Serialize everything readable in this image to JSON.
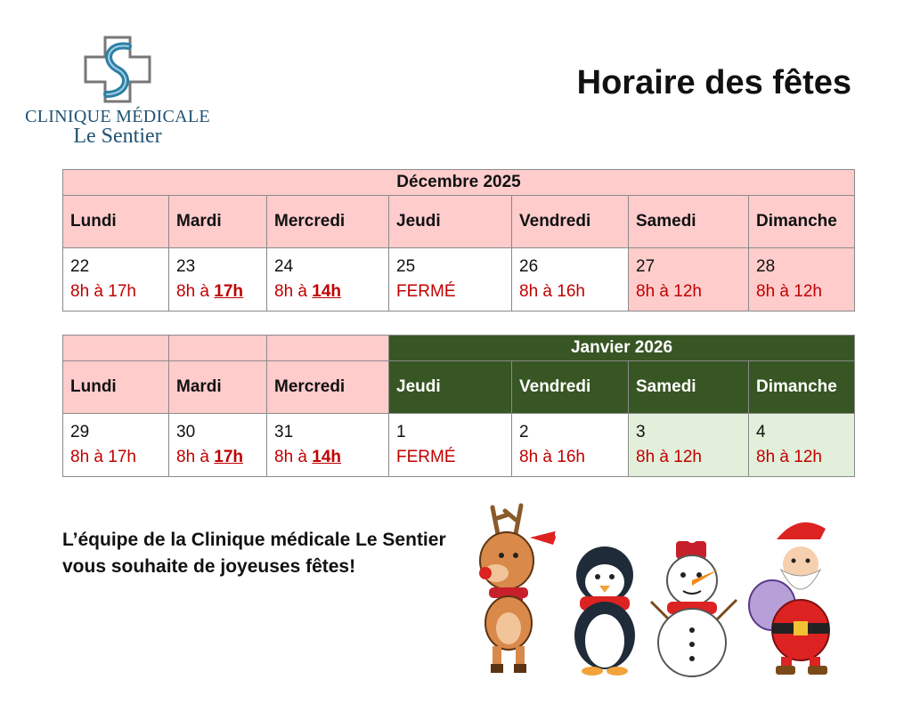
{
  "logo": {
    "line1": "CLINIQUE MÉDICALE",
    "line2": "Le Sentier"
  },
  "title": "Horaire des fêtes",
  "colors": {
    "pink": "#ffcccc",
    "dark_green": "#375623",
    "light_green": "#e2efda",
    "red": "#c00000",
    "logo_blue": "#1f5273"
  },
  "december": {
    "month": "Décembre 2025",
    "days": [
      "Lundi",
      "Mardi",
      "Mercredi",
      "Jeudi",
      "Vendredi",
      "Samedi",
      "Dimanche"
    ],
    "cells": [
      {
        "date": "22",
        "hours": "8h à 17h",
        "bold": ""
      },
      {
        "date": "23",
        "hours": "8h à ",
        "bold": "17h"
      },
      {
        "date": "24",
        "hours": "8h à ",
        "bold": "14h"
      },
      {
        "date": "25",
        "hours": "FERMÉ",
        "bold": ""
      },
      {
        "date": "26",
        "hours": "8h à 16h",
        "bold": ""
      },
      {
        "date": "27",
        "hours": "8h à 12h",
        "bold": ""
      },
      {
        "date": "28",
        "hours": "8h à 12h",
        "bold": ""
      }
    ]
  },
  "january": {
    "month": "Janvier 2026",
    "days": [
      "Lundi",
      "Mardi",
      "Mercredi",
      "Jeudi",
      "Vendredi",
      "Samedi",
      "Dimanche"
    ],
    "cells": [
      {
        "date": "29",
        "hours": "8h à 17h",
        "bold": ""
      },
      {
        "date": "30",
        "hours": "8h à ",
        "bold": "17h"
      },
      {
        "date": "31",
        "hours": "8h à ",
        "bold": "14h"
      },
      {
        "date": "1",
        "hours": "FERMÉ",
        "bold": ""
      },
      {
        "date": "2",
        "hours": "8h à 16h",
        "bold": ""
      },
      {
        "date": "3",
        "hours": "8h à 12h",
        "bold": ""
      },
      {
        "date": "4",
        "hours": "8h à 12h",
        "bold": ""
      }
    ]
  },
  "message": {
    "line1": "L’équipe de la Clinique médicale Le Sentier",
    "line2": "vous souhaite de joyeuses fêtes!"
  },
  "illustration": {
    "characters": [
      "reindeer",
      "penguin",
      "snowman",
      "santa"
    ]
  }
}
